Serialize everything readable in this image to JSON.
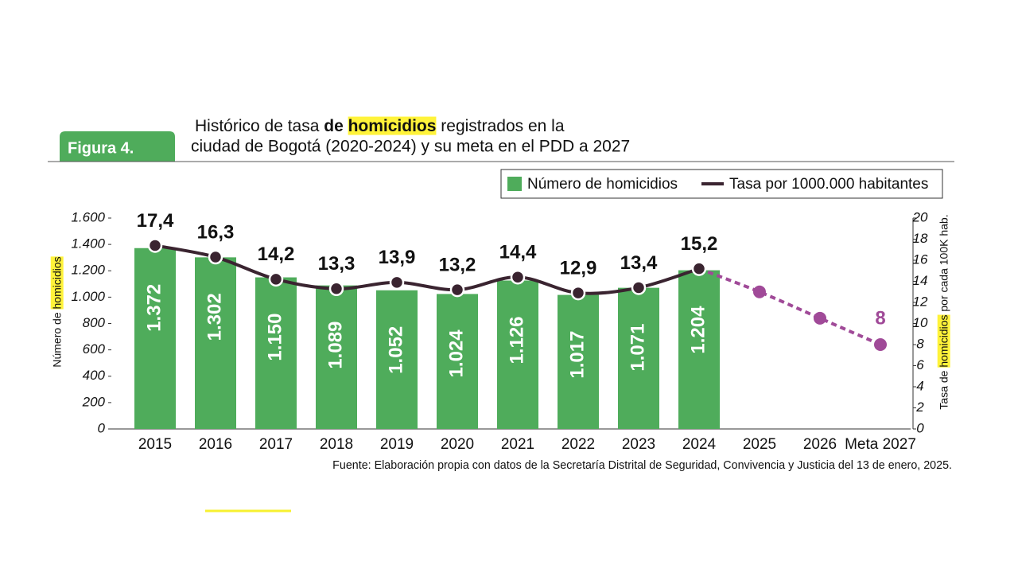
{
  "chart_data": {
    "type": "bar_line",
    "figure_label": "Figura 4.",
    "title": {
      "line1": {
        "before": "Histórico de tasa ",
        "bold": "de homicidios",
        "after": " registrados en la"
      },
      "line2": "ciudad de Bogotá (2020-2024) y su meta en el PDD a 2027"
    },
    "highlight_word": "homicidios",
    "categories": [
      "2015",
      "2016",
      "2017",
      "2018",
      "2019",
      "2020",
      "2021",
      "2022",
      "2023",
      "2024",
      "2025",
      "2026",
      "Meta 2027"
    ],
    "series": [
      {
        "name": "Número de homicidios",
        "kind": "bar",
        "color": "#4fac5b",
        "values": [
          1372,
          1302,
          1150,
          1089,
          1052,
          1024,
          1126,
          1017,
          1071,
          1204,
          null,
          null,
          null
        ],
        "value_labels": [
          "1.372",
          "1.302",
          "1.150",
          "1.089",
          "1.052",
          "1.024",
          "1.126",
          "1.017",
          "1.071",
          "1.204",
          null,
          null,
          null
        ]
      },
      {
        "name": "Tasa por 1000.000 habitantes",
        "kind": "line",
        "axis": "y2",
        "color": "#3a2430",
        "projection_start": 9,
        "projection_color": "#a04a98",
        "values": [
          17.4,
          16.3,
          14.2,
          13.3,
          13.9,
          13.2,
          14.4,
          12.9,
          13.4,
          15.2,
          13,
          10.5,
          8
        ],
        "value_labels": [
          "17,4",
          "16,3",
          "14,2",
          "13,3",
          "13,9",
          "13,2",
          "14,4",
          "12,9",
          "13,4",
          "15,2",
          null,
          null,
          "8"
        ]
      }
    ],
    "ylabel": "Número de homicidios",
    "y2label": "Tasa de homicidios por cada 100K hab.",
    "ylim": [
      0,
      1600
    ],
    "yticks": [
      0,
      200,
      400,
      600,
      800,
      {
        "value": 1000,
        "label": "1.000"
      },
      {
        "value": 1200,
        "label": "1.200"
      },
      {
        "value": 1400,
        "label": "1.400"
      },
      {
        "value": 1600,
        "label": "1.600"
      }
    ],
    "y2lim": [
      0,
      20
    ],
    "y2ticks": [
      0,
      2,
      4,
      6,
      8,
      10,
      12,
      14,
      16,
      18,
      20
    ],
    "source": "Fuente: Elaboración propia con datos de la Secretaría Distrital de Seguridad, Convivencia y Justicia del 13 de enero, 2025."
  }
}
